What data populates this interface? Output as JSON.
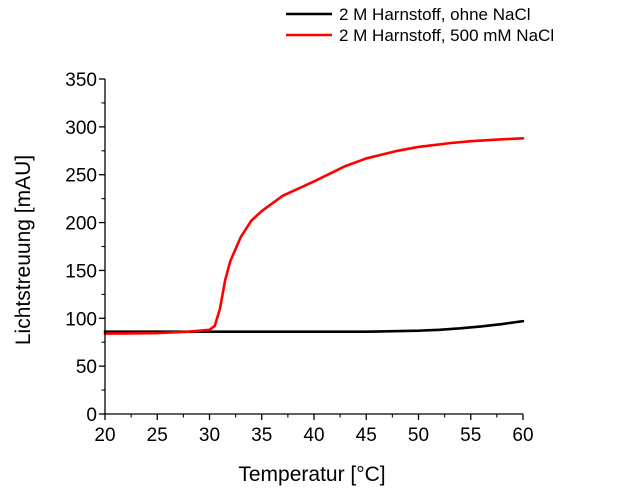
{
  "chart_data": {
    "type": "line",
    "title": "",
    "xlabel": "Temperatur [°C]",
    "ylabel": "Lichtstreuung [mAU]",
    "xlim": [
      20,
      60
    ],
    "ylim": [
      0,
      350
    ],
    "xticks": [
      20,
      25,
      30,
      35,
      40,
      45,
      50,
      55,
      60
    ],
    "yticks": [
      0,
      50,
      100,
      150,
      200,
      250,
      300,
      350
    ],
    "grid": false,
    "legend_position": "top-right",
    "series": [
      {
        "name": "2 M Harnstoff, ohne NaCl",
        "color": "#000000",
        "x": [
          20,
          25,
          30,
          35,
          40,
          45,
          50,
          52,
          54,
          56,
          58,
          60
        ],
        "y": [
          86,
          86,
          86,
          86,
          86,
          86,
          87,
          88,
          89.5,
          91.5,
          94,
          97
        ]
      },
      {
        "name": "2 M Harnstoff, 500 mM NaCl",
        "color": "#ff0000",
        "x": [
          20,
          25,
          28,
          30,
          30.5,
          31,
          31.5,
          32,
          33,
          34,
          35,
          37,
          40,
          43,
          45,
          48,
          50,
          53,
          55,
          58,
          60
        ],
        "y": [
          84,
          84.5,
          86,
          88,
          92,
          110,
          140,
          160,
          185,
          202,
          212,
          228,
          243,
          259,
          267,
          275,
          279,
          283,
          285,
          287,
          288
        ]
      }
    ]
  }
}
